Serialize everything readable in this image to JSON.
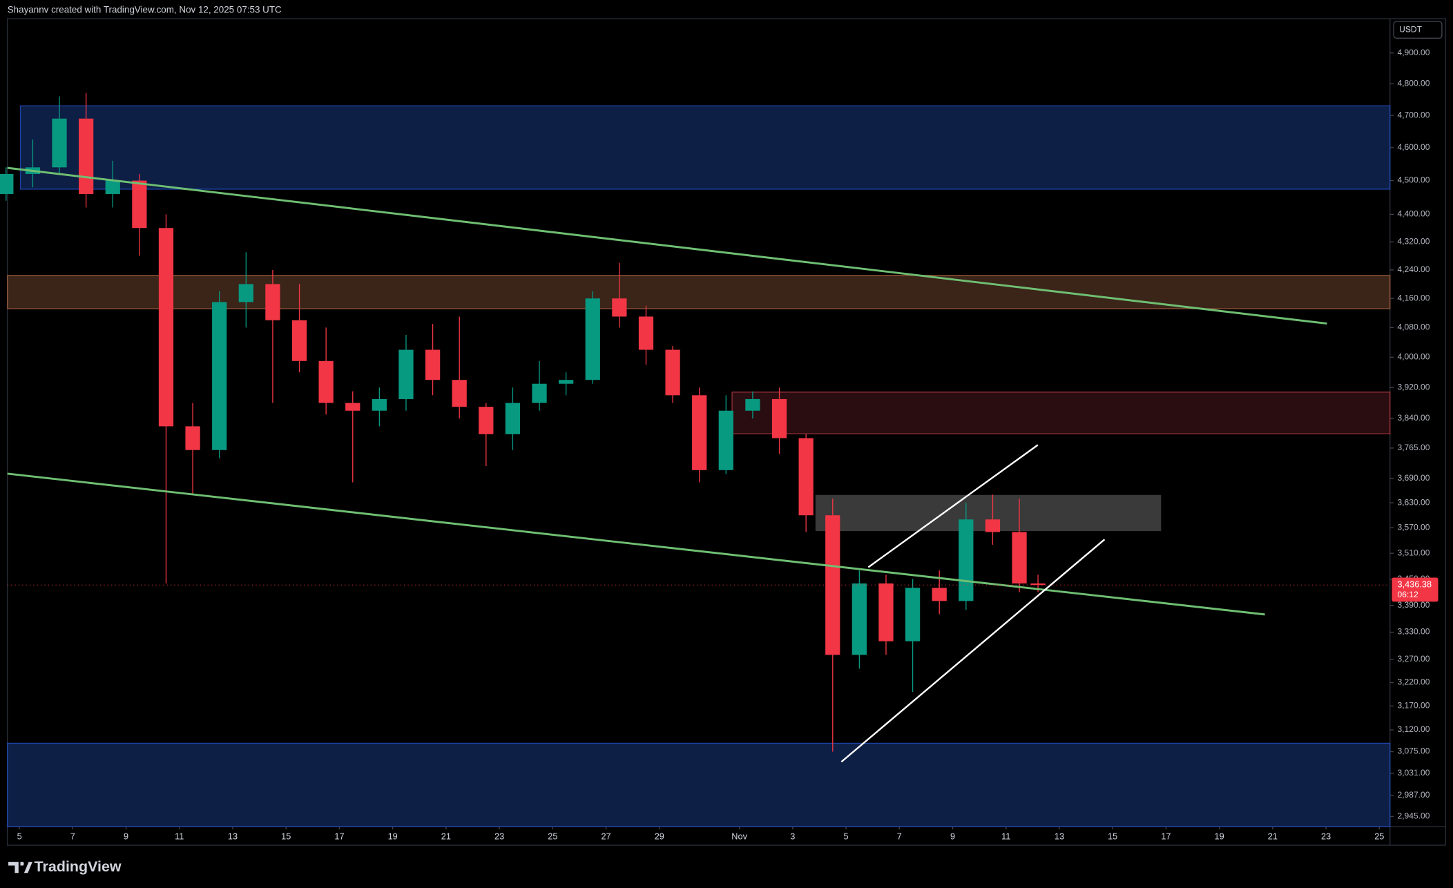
{
  "header": {
    "attribution": "Shayannv created with TradingView.com, Nov 12, 2025 07:53 UTC"
  },
  "footer": {
    "brand": "TradingView"
  },
  "chart_data": {
    "type": "candlestick",
    "currency": "USDT",
    "log": true,
    "grid": false,
    "up_color": "#089981",
    "down_color": "#f23645",
    "xlim": [
      4.55,
      56.4
    ],
    "ylim": [
      2925,
      5013
    ],
    "xticks": [
      5,
      7,
      9,
      11,
      13,
      15,
      17,
      19,
      21,
      23,
      25,
      27,
      29,
      {
        "value": 32,
        "label": "Nov"
      },
      {
        "value": 34,
        "label": "3"
      },
      {
        "value": 36,
        "label": "5"
      },
      {
        "value": 38,
        "label": "7"
      },
      {
        "value": 40,
        "label": "9"
      },
      {
        "value": 42,
        "label": "11"
      },
      {
        "value": 44,
        "label": "13"
      },
      {
        "value": 46,
        "label": "15"
      },
      {
        "value": 48,
        "label": "17"
      },
      {
        "value": 50,
        "label": "19"
      },
      {
        "value": 52,
        "label": "21"
      },
      {
        "value": 54,
        "label": "23"
      },
      {
        "value": 56,
        "label": "25"
      }
    ],
    "yticks": [
      {
        "value": 4900,
        "label": "4,900.00"
      },
      {
        "value": 4800,
        "label": "4,800.00"
      },
      {
        "value": 4700,
        "label": "4,700.00"
      },
      {
        "value": 4600,
        "label": "4,600.00"
      },
      {
        "value": 4500,
        "label": "4,500.00"
      },
      {
        "value": 4400,
        "label": "4,400.00"
      },
      {
        "value": 4320,
        "label": "4,320.00"
      },
      {
        "value": 4240,
        "label": "4,240.00"
      },
      {
        "value": 4160,
        "label": "4,160.00"
      },
      {
        "value": 4080,
        "label": "4,080.00"
      },
      {
        "value": 4000,
        "label": "4,000.00"
      },
      {
        "value": 3920,
        "label": "3,920.00"
      },
      {
        "value": 3840,
        "label": "3,840.00"
      },
      {
        "value": 3765,
        "label": "3,765.00"
      },
      {
        "value": 3690,
        "label": "3,690.00"
      },
      {
        "value": 3630,
        "label": "3,630.00"
      },
      {
        "value": 3570,
        "label": "3,570.00"
      },
      {
        "value": 3510,
        "label": "3,510.00"
      },
      {
        "value": 3450,
        "label": "3,450.00"
      },
      {
        "value": 3390,
        "label": "3,390.00"
      },
      {
        "value": 3330,
        "label": "3,330.00"
      },
      {
        "value": 3270,
        "label": "3,270.00"
      },
      {
        "value": 3220,
        "label": "3,220.00"
      },
      {
        "value": 3170,
        "label": "3,170.00"
      },
      {
        "value": 3120,
        "label": "3,120.00"
      },
      {
        "value": 3075,
        "label": "3,075.00"
      },
      {
        "value": 3031,
        "label": "3,031.00"
      },
      {
        "value": 2987,
        "label": "2,987.00"
      },
      {
        "value": 2945,
        "label": "2,945.00"
      }
    ],
    "x": [
      4.5,
      5.5,
      6.5,
      7.5,
      8.5,
      9.5,
      10.5,
      11.5,
      12.5,
      13.5,
      14.5,
      15.5,
      16.5,
      17.5,
      18.5,
      19.5,
      20.5,
      21.5,
      22.5,
      23.5,
      24.5,
      25.5,
      26.5,
      27.5,
      28.5,
      29.5,
      30.5,
      31.5,
      32.5,
      33.5,
      34.5,
      35.5,
      36.5,
      37.5,
      38.5,
      39.5,
      40.5,
      41.5,
      42.5,
      43.2
    ],
    "open": [
      4460,
      4520,
      4540,
      4690,
      4460,
      4500,
      4360,
      3820,
      3760,
      4150,
      4200,
      4100,
      3990,
      3880,
      3860,
      3890,
      4020,
      3940,
      3870,
      3800,
      3880,
      3930,
      3940,
      4160,
      4110,
      4020,
      3900,
      3710,
      3860,
      3890,
      3790,
      3600,
      3280,
      3440,
      3310,
      3430,
      3400,
      3590,
      3560,
      3440
    ],
    "high": [
      4540,
      4625,
      4760,
      4770,
      4560,
      4520,
      4400,
      3880,
      4180,
      4290,
      4240,
      4200,
      4080,
      3910,
      3920,
      4060,
      4090,
      4110,
      3880,
      3920,
      3990,
      3960,
      4180,
      4260,
      4140,
      4030,
      3920,
      3900,
      3910,
      3920,
      3800,
      3640,
      3470,
      3460,
      3450,
      3470,
      3630,
      3650,
      3640,
      3460
    ],
    "low": [
      4440,
      4480,
      4520,
      4420,
      4420,
      4280,
      3440,
      3650,
      3740,
      4080,
      3880,
      3960,
      3850,
      3680,
      3820,
      3860,
      3900,
      3840,
      3720,
      3760,
      3860,
      3900,
      3930,
      4080,
      3980,
      3880,
      3680,
      3700,
      3840,
      3750,
      3560,
      3075,
      3250,
      3280,
      3200,
      3370,
      3380,
      3530,
      3420,
      3420
    ],
    "close": [
      4520,
      4540,
      4690,
      4460,
      4500,
      4360,
      3820,
      3760,
      4150,
      4200,
      4100,
      3990,
      3880,
      3860,
      3890,
      4020,
      3940,
      3870,
      3800,
      3880,
      3930,
      3940,
      4160,
      4110,
      4020,
      3900,
      3710,
      3860,
      3890,
      3790,
      3600,
      3280,
      3440,
      3310,
      3430,
      3400,
      3590,
      3560,
      3440,
      3436.38
    ],
    "last_price": {
      "value": 3436.38,
      "label": "3,436.38"
    },
    "countdown": "06:12"
  }
}
